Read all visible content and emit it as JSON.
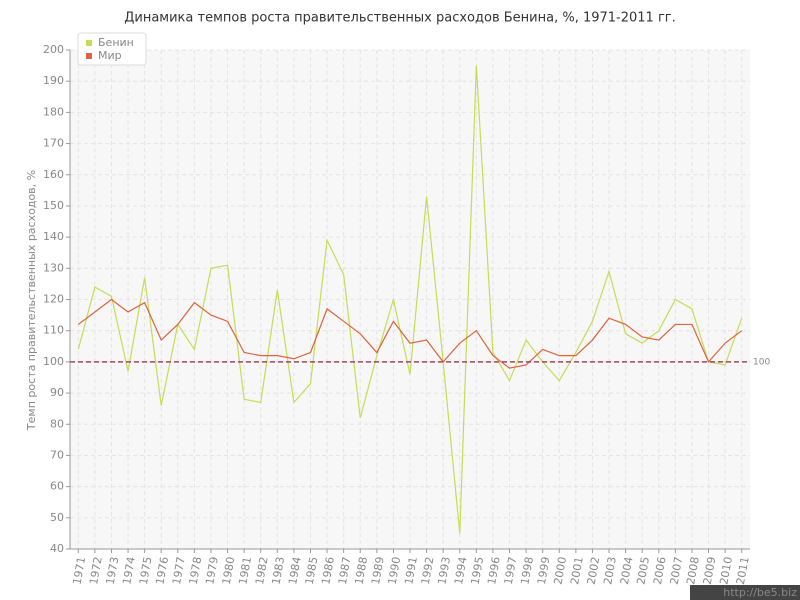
{
  "chart_data": {
    "type": "line",
    "title": "Динамика темпов роста правительственных расходов Бенина, %, 1971-2011 гг.",
    "y_label": "Темп роста правительственных расходов, %",
    "categories": [
      "1971",
      "1972",
      "1973",
      "1974",
      "1975",
      "1976",
      "1977",
      "1978",
      "1979",
      "1980",
      "1981",
      "1982",
      "1983",
      "1984",
      "1985",
      "1986",
      "1987",
      "1988",
      "1989",
      "1990",
      "1991",
      "1992",
      "1993",
      "1994",
      "1995",
      "1996",
      "1997",
      "1998",
      "1999",
      "2000",
      "2001",
      "2002",
      "2003",
      "2004",
      "2005",
      "2006",
      "2007",
      "2008",
      "2009",
      "2010",
      "2011"
    ],
    "series": [
      {
        "name": "Бенин",
        "color": "#c5dc55",
        "values": [
          104,
          124,
          121,
          97,
          127,
          86,
          112,
          104,
          130,
          131,
          88,
          87,
          123,
          87,
          93,
          139,
          128,
          82,
          102,
          120,
          96,
          153,
          100,
          45,
          195,
          103,
          94,
          107,
          100,
          94,
          103,
          113,
          129,
          109,
          106,
          110,
          120,
          117,
          100,
          99,
          114
        ]
      },
      {
        "name": "Мир",
        "color": "#e0623f",
        "values": [
          112,
          116,
          120,
          116,
          119,
          107,
          112,
          119,
          115,
          113,
          103,
          102,
          102,
          101,
          103,
          117,
          113,
          109,
          103,
          113,
          106,
          107,
          100,
          106,
          110,
          102,
          98,
          99,
          104,
          102,
          102,
          107,
          114,
          112,
          108,
          107,
          112,
          112,
          100,
          106,
          110
        ]
      }
    ],
    "ylim": [
      40,
      200
    ],
    "yticks": [
      40,
      50,
      60,
      70,
      80,
      90,
      100,
      110,
      120,
      130,
      140,
      150,
      160,
      170,
      180,
      190,
      200
    ],
    "reference_line": 100,
    "reference_color": "#a04858",
    "grid": true,
    "legend": "top-left",
    "watermark": "http://be5.biz"
  }
}
